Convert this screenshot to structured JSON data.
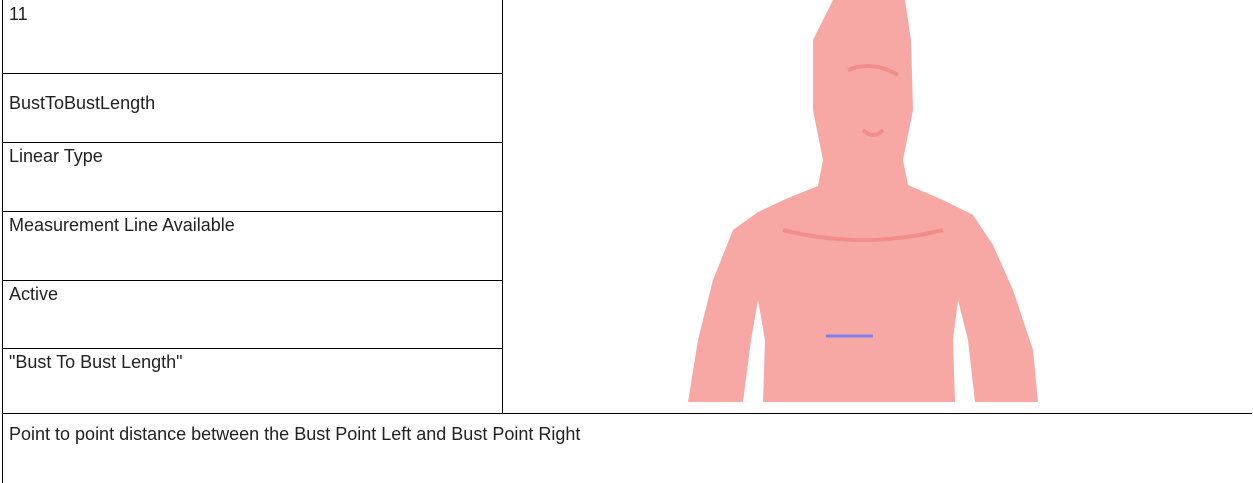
{
  "table": {
    "rows": [
      "11",
      "BustToBustLength",
      "Linear Type",
      "Measurement Line Available",
      "Active",
      "\"Bust To Bust Length\""
    ]
  },
  "description": "Point to point distance between the Bust Point Left and Bust Point Right"
}
